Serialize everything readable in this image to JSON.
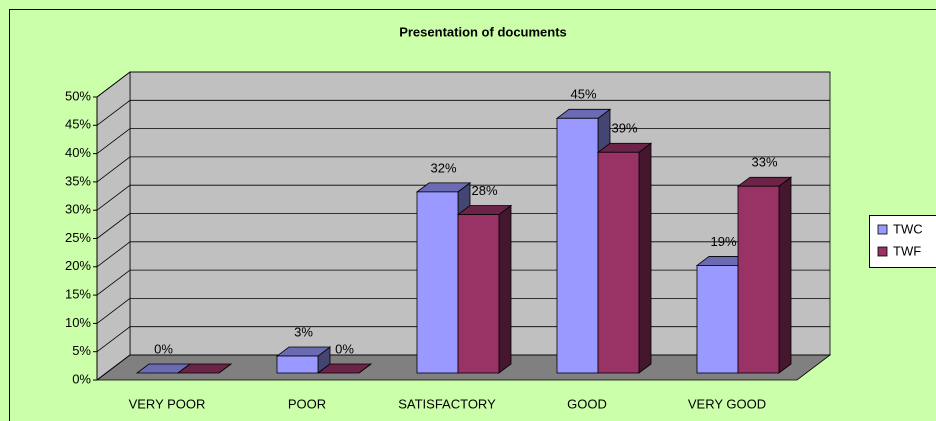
{
  "chart_data": {
    "type": "bar3d",
    "title": "Presentation of documents",
    "categories": [
      "VERY POOR",
      "POOR",
      "SATISFACTORY",
      "GOOD",
      "VERY GOOD"
    ],
    "series": [
      {
        "name": "TWC",
        "color": "#9999ff",
        "values": [
          0,
          3,
          32,
          45,
          19
        ],
        "value_labels": [
          "0%",
          "3%",
          "32%",
          "45%",
          "19%"
        ]
      },
      {
        "name": "TWF",
        "color": "#993366",
        "values": [
          0,
          0,
          28,
          39,
          33
        ],
        "value_labels": [
          "",
          "0%",
          "28%",
          "39%",
          "33%"
        ]
      }
    ],
    "ylim": [
      0,
      50
    ],
    "yticks": [
      {
        "value": 0,
        "label": "0%"
      },
      {
        "value": 5,
        "label": "5%"
      },
      {
        "value": 10,
        "label": "10%"
      },
      {
        "value": 15,
        "label": "15%"
      },
      {
        "value": 20,
        "label": "20%"
      },
      {
        "value": 25,
        "label": "25%"
      },
      {
        "value": 30,
        "label": "30%"
      },
      {
        "value": 35,
        "label": "35%"
      },
      {
        "value": 40,
        "label": "40%"
      },
      {
        "value": 45,
        "label": "45%"
      },
      {
        "value": 50,
        "label": "50%"
      }
    ],
    "grid": true,
    "legend": "right"
  }
}
